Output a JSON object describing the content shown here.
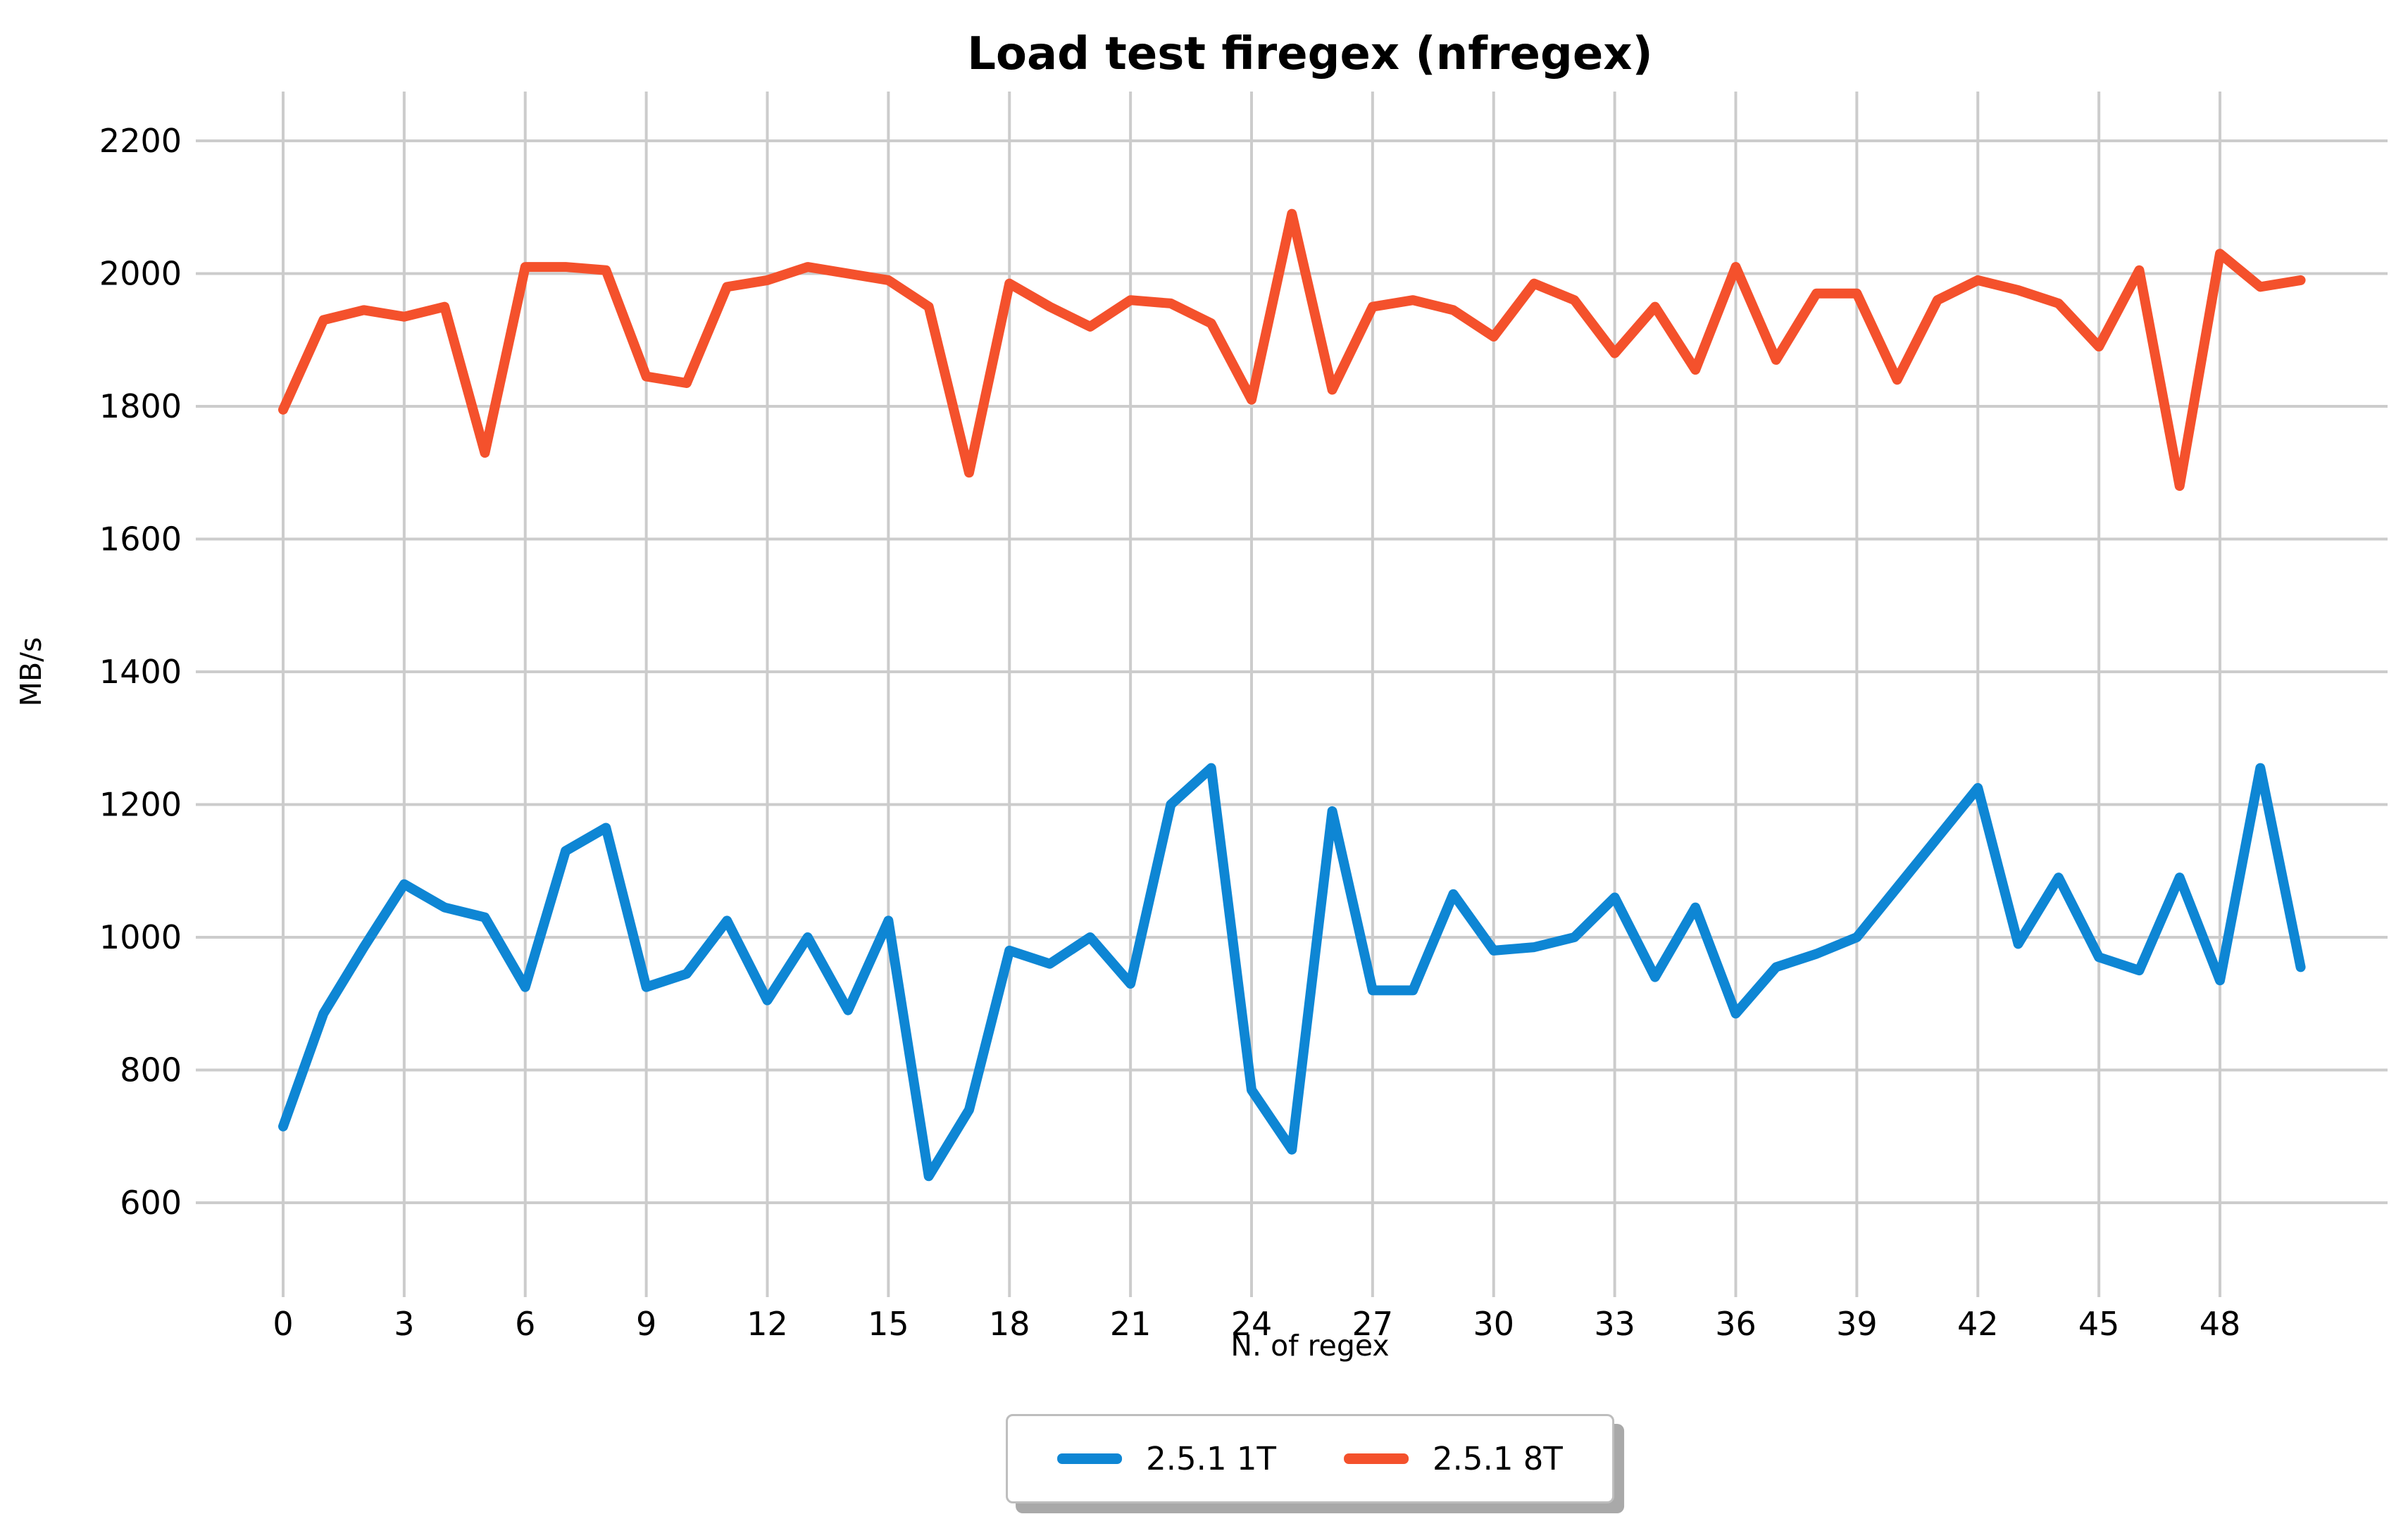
{
  "chart_data": {
    "type": "line",
    "title": "Load test firegex (nfregex)",
    "xlabel": "N. of regex",
    "ylabel": "MB/s",
    "x_start": 0,
    "x_step": 1,
    "x_tick_start": 0,
    "x_tick_step": 3,
    "x_tick_end": 48,
    "y_ticks": [
      600,
      800,
      1000,
      1200,
      1400,
      1600,
      1800,
      2000,
      2200
    ],
    "ylim": [
      600,
      2200
    ],
    "grid": "on",
    "legend_position": "bottom-center",
    "colors": {
      "grid": "#cccccc",
      "text": "#000000",
      "legend_border": "#bdbdbd",
      "legend_shadow": "#a9a9a9",
      "background": "#ffffff"
    },
    "series": [
      {
        "name": "2.5.1 1T",
        "color": "#0e86d4",
        "values": [
          715,
          885,
          985,
          1080,
          1045,
          1030,
          925,
          1130,
          1165,
          925,
          945,
          1025,
          905,
          1000,
          890,
          1025,
          640,
          740,
          980,
          960,
          1000,
          930,
          1200,
          1255,
          770,
          680,
          1190,
          920,
          920,
          1065,
          980,
          985,
          1000,
          1060,
          940,
          1045,
          885,
          955,
          975,
          1000,
          1075,
          1150,
          1225,
          990,
          1090,
          970,
          950,
          1090,
          935,
          1255,
          955
        ]
      },
      {
        "name": "2.5.1 8T",
        "color": "#f4512c",
        "values": [
          1795,
          1930,
          1945,
          1935,
          1950,
          1730,
          2010,
          2010,
          2005,
          1845,
          1835,
          1980,
          1990,
          2010,
          2000,
          1990,
          1950,
          1700,
          1985,
          1950,
          1920,
          1960,
          1955,
          1925,
          1810,
          2090,
          1825,
          1950,
          1960,
          1945,
          1905,
          1985,
          1960,
          1880,
          1950,
          1855,
          2010,
          1870,
          1970,
          1970,
          1840,
          1960,
          1990,
          1975,
          1955,
          1890,
          2005,
          1680,
          2030,
          1980,
          1990
        ]
      }
    ]
  }
}
